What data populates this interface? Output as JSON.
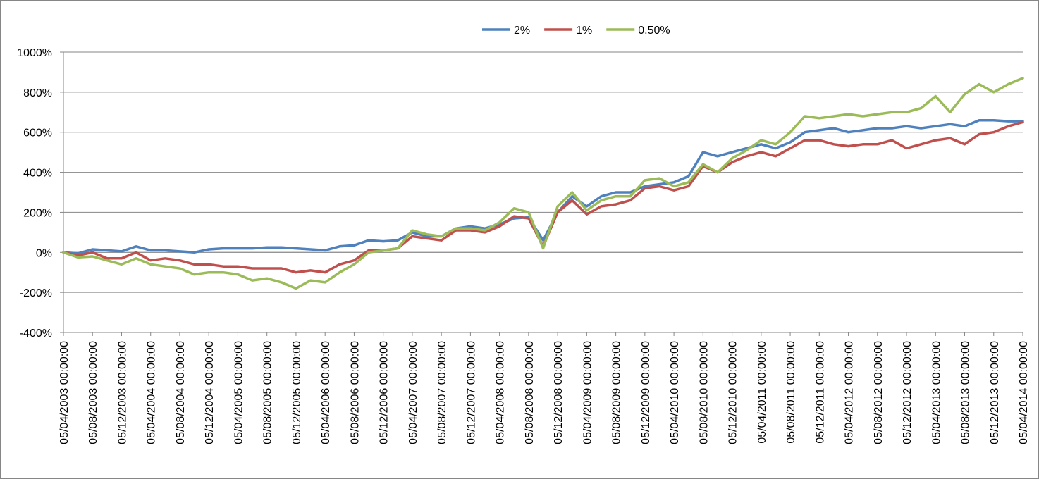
{
  "chart_data": {
    "type": "line",
    "title": "",
    "xlabel": "",
    "ylabel": "",
    "ylim": [
      -400,
      1000
    ],
    "y_ticks": [
      -400,
      -200,
      0,
      200,
      400,
      600,
      800,
      1000
    ],
    "y_tick_labels": [
      "-400%",
      "-200%",
      "0%",
      "200%",
      "400%",
      "600%",
      "800%",
      "1000%"
    ],
    "grid": "horizontal",
    "legend_position": "top",
    "x": [
      "05/04/2003",
      "05/06/2003",
      "05/08/2003",
      "05/10/2003",
      "05/12/2003",
      "05/02/2004",
      "05/04/2004",
      "05/06/2004",
      "05/08/2004",
      "05/10/2004",
      "05/12/2004",
      "05/02/2005",
      "05/04/2005",
      "05/06/2005",
      "05/08/2005",
      "05/10/2005",
      "05/12/2005",
      "05/02/2006",
      "05/04/2006",
      "05/06/2006",
      "05/08/2006",
      "05/10/2006",
      "05/12/2006",
      "05/02/2007",
      "05/04/2007",
      "05/06/2007",
      "05/08/2007",
      "05/10/2007",
      "05/12/2007",
      "05/02/2008",
      "05/04/2008",
      "05/06/2008",
      "05/08/2008",
      "05/10/2008",
      "05/12/2008",
      "05/02/2009",
      "05/04/2009",
      "05/06/2009",
      "05/08/2009",
      "05/10/2009",
      "05/12/2009",
      "05/02/2010",
      "05/04/2010",
      "05/06/2010",
      "05/08/2010",
      "05/10/2010",
      "05/12/2010",
      "05/02/2011",
      "05/04/2011",
      "05/06/2011",
      "05/08/2011",
      "05/10/2011",
      "05/12/2011",
      "05/02/2012",
      "05/04/2012",
      "05/06/2012",
      "05/08/2012",
      "05/10/2012",
      "05/12/2012",
      "05/02/2013",
      "05/04/2013",
      "05/06/2013",
      "05/08/2013",
      "05/10/2013",
      "05/12/2013",
      "05/02/2014",
      "05/04/2014"
    ],
    "x_tick_labels": [
      "05/04/2003 00:00:00",
      "05/08/2003 00:00:00",
      "05/12/2003 00:00:00",
      "05/04/2004 00:00:00",
      "05/08/2004 00:00:00",
      "05/12/2004 00:00:00",
      "05/04/2005 00:00:00",
      "05/08/2005 00:00:00",
      "05/12/2005 00:00:00",
      "05/04/2006 00:00:00",
      "05/08/2006 00:00:00",
      "05/12/2006 00:00:00",
      "05/04/2007 00:00:00",
      "05/08/2007 00:00:00",
      "05/12/2007 00:00:00",
      "05/04/2008 00:00:00",
      "05/08/2008 00:00:00",
      "05/12/2008 00:00:00",
      "05/04/2009 00:00:00",
      "05/08/2009 00:00:00",
      "05/12/2009 00:00:00",
      "05/04/2010 00:00:00",
      "05/08/2010 00:00:00",
      "05/12/2010 00:00:00",
      "05/04/2011 00:00:00",
      "05/08/2011 00:00:00",
      "05/12/2011 00:00:00",
      "05/04/2012 00:00:00",
      "05/08/2012 00:00:00",
      "05/12/2012 00:00:00",
      "05/04/2013 00:00:00",
      "05/08/2013 00:00:00",
      "05/12/2013 00:00:00",
      "05/04/2014 00:00:00"
    ],
    "series": [
      {
        "name": "2%",
        "color": "#4f81bd",
        "values": [
          0,
          -5,
          15,
          10,
          5,
          30,
          10,
          10,
          5,
          0,
          15,
          20,
          20,
          20,
          25,
          25,
          20,
          15,
          10,
          30,
          35,
          60,
          55,
          60,
          100,
          80,
          80,
          120,
          130,
          120,
          140,
          170,
          175,
          60,
          200,
          280,
          230,
          280,
          300,
          300,
          330,
          340,
          350,
          380,
          500,
          480,
          500,
          520,
          540,
          520,
          550,
          600,
          610,
          620,
          600,
          610,
          620,
          620,
          630,
          620,
          630,
          640,
          630,
          660,
          660,
          655,
          655
        ]
      },
      {
        "name": "1%",
        "color": "#c0504d",
        "values": [
          0,
          -15,
          0,
          -30,
          -30,
          0,
          -40,
          -30,
          -40,
          -60,
          -60,
          -70,
          -70,
          -80,
          -80,
          -80,
          -100,
          -90,
          -100,
          -60,
          -40,
          10,
          10,
          20,
          80,
          70,
          60,
          110,
          110,
          100,
          130,
          180,
          170,
          30,
          200,
          260,
          190,
          230,
          240,
          260,
          320,
          330,
          310,
          330,
          430,
          400,
          450,
          480,
          500,
          480,
          520,
          560,
          560,
          540,
          530,
          540,
          540,
          560,
          520,
          540,
          560,
          570,
          540,
          590,
          600,
          630,
          650
        ]
      },
      {
        "name": "0.50%",
        "color": "#9bbb59",
        "values": [
          0,
          -25,
          -20,
          -40,
          -60,
          -30,
          -60,
          -70,
          -80,
          -110,
          -100,
          -100,
          -110,
          -140,
          -130,
          -150,
          -180,
          -140,
          -150,
          -100,
          -60,
          0,
          10,
          20,
          110,
          90,
          80,
          120,
          120,
          110,
          150,
          220,
          200,
          20,
          230,
          300,
          210,
          260,
          280,
          280,
          360,
          370,
          330,
          350,
          440,
          400,
          470,
          510,
          560,
          540,
          600,
          680,
          670,
          680,
          690,
          680,
          690,
          700,
          700,
          720,
          780,
          700,
          790,
          840,
          800,
          840,
          870
        ]
      }
    ]
  }
}
